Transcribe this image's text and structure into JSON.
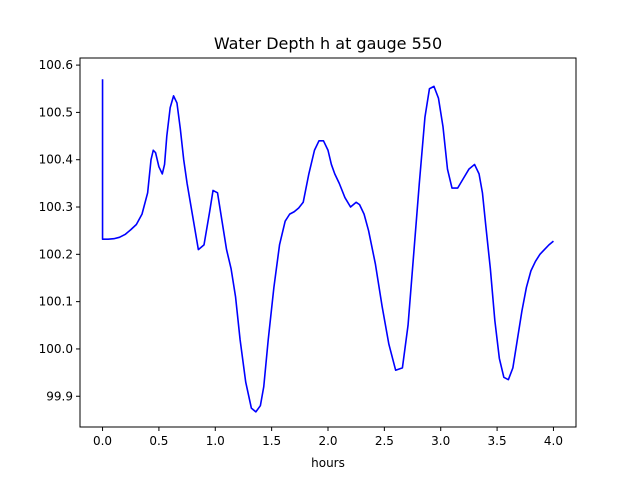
{
  "chart_data": {
    "type": "line",
    "title": "Water Depth h at gauge 550",
    "xlabel": "hours",
    "ylabel": "",
    "xlim": [
      -0.2,
      4.2
    ],
    "ylim": [
      99.835,
      100.615
    ],
    "xticks": [
      0.0,
      0.5,
      1.0,
      1.5,
      2.0,
      2.5,
      3.0,
      3.5,
      4.0
    ],
    "xtick_labels": [
      "0.0",
      "0.5",
      "1.0",
      "1.5",
      "2.0",
      "2.5",
      "3.0",
      "3.5",
      "4.0"
    ],
    "yticks": [
      99.9,
      100.0,
      100.1,
      100.2,
      100.3,
      100.4,
      100.5,
      100.6
    ],
    "ytick_labels": [
      "99.9",
      "100.0",
      "100.1",
      "100.2",
      "100.3",
      "100.4",
      "100.5",
      "100.6"
    ],
    "grid": false,
    "series": [
      {
        "name": "",
        "color": "#0000ff",
        "x": [
          0.0,
          0.0,
          0.0,
          0.05,
          0.1,
          0.15,
          0.2,
          0.25,
          0.3,
          0.35,
          0.4,
          0.43,
          0.45,
          0.47,
          0.5,
          0.53,
          0.55,
          0.57,
          0.6,
          0.63,
          0.66,
          0.69,
          0.72,
          0.75,
          0.8,
          0.85,
          0.9,
          0.95,
          0.98,
          1.02,
          1.06,
          1.1,
          1.14,
          1.18,
          1.22,
          1.27,
          1.32,
          1.36,
          1.4,
          1.43,
          1.47,
          1.52,
          1.57,
          1.62,
          1.66,
          1.7,
          1.74,
          1.78,
          1.83,
          1.88,
          1.92,
          1.96,
          2.0,
          2.03,
          2.06,
          2.1,
          2.15,
          2.2,
          2.25,
          2.28,
          2.32,
          2.36,
          2.42,
          2.48,
          2.54,
          2.6,
          2.66,
          2.71,
          2.76,
          2.81,
          2.86,
          2.9,
          2.94,
          2.98,
          3.02,
          3.06,
          3.1,
          3.15,
          3.2,
          3.25,
          3.3,
          3.34,
          3.37,
          3.4,
          3.44,
          3.48,
          3.52,
          3.56,
          3.6,
          3.64,
          3.68,
          3.72,
          3.76,
          3.8,
          3.84,
          3.88,
          3.92,
          3.96,
          4.0
        ],
        "y": [
          100.57,
          100.45,
          100.232,
          100.232,
          100.233,
          100.236,
          100.242,
          100.252,
          100.263,
          100.285,
          100.33,
          100.4,
          100.42,
          100.415,
          100.385,
          100.37,
          100.39,
          100.45,
          100.51,
          100.535,
          100.52,
          100.465,
          100.4,
          100.35,
          100.28,
          100.21,
          100.22,
          100.29,
          100.335,
          100.33,
          100.27,
          100.21,
          100.17,
          100.11,
          100.02,
          99.93,
          99.875,
          99.867,
          99.88,
          99.92,
          100.02,
          100.13,
          100.22,
          100.27,
          100.285,
          100.29,
          100.298,
          100.31,
          100.37,
          100.42,
          100.44,
          100.44,
          100.42,
          100.39,
          100.37,
          100.35,
          100.32,
          100.3,
          100.31,
          100.305,
          100.285,
          100.25,
          100.18,
          100.09,
          100.01,
          99.955,
          99.96,
          100.05,
          100.2,
          100.35,
          100.49,
          100.55,
          100.555,
          100.53,
          100.47,
          100.38,
          100.34,
          100.34,
          100.36,
          100.38,
          100.39,
          100.37,
          100.33,
          100.26,
          100.17,
          100.06,
          99.98,
          99.94,
          99.935,
          99.96,
          100.02,
          100.08,
          100.13,
          100.165,
          100.185,
          100.2,
          100.21,
          100.22,
          100.228
        ]
      }
    ]
  }
}
